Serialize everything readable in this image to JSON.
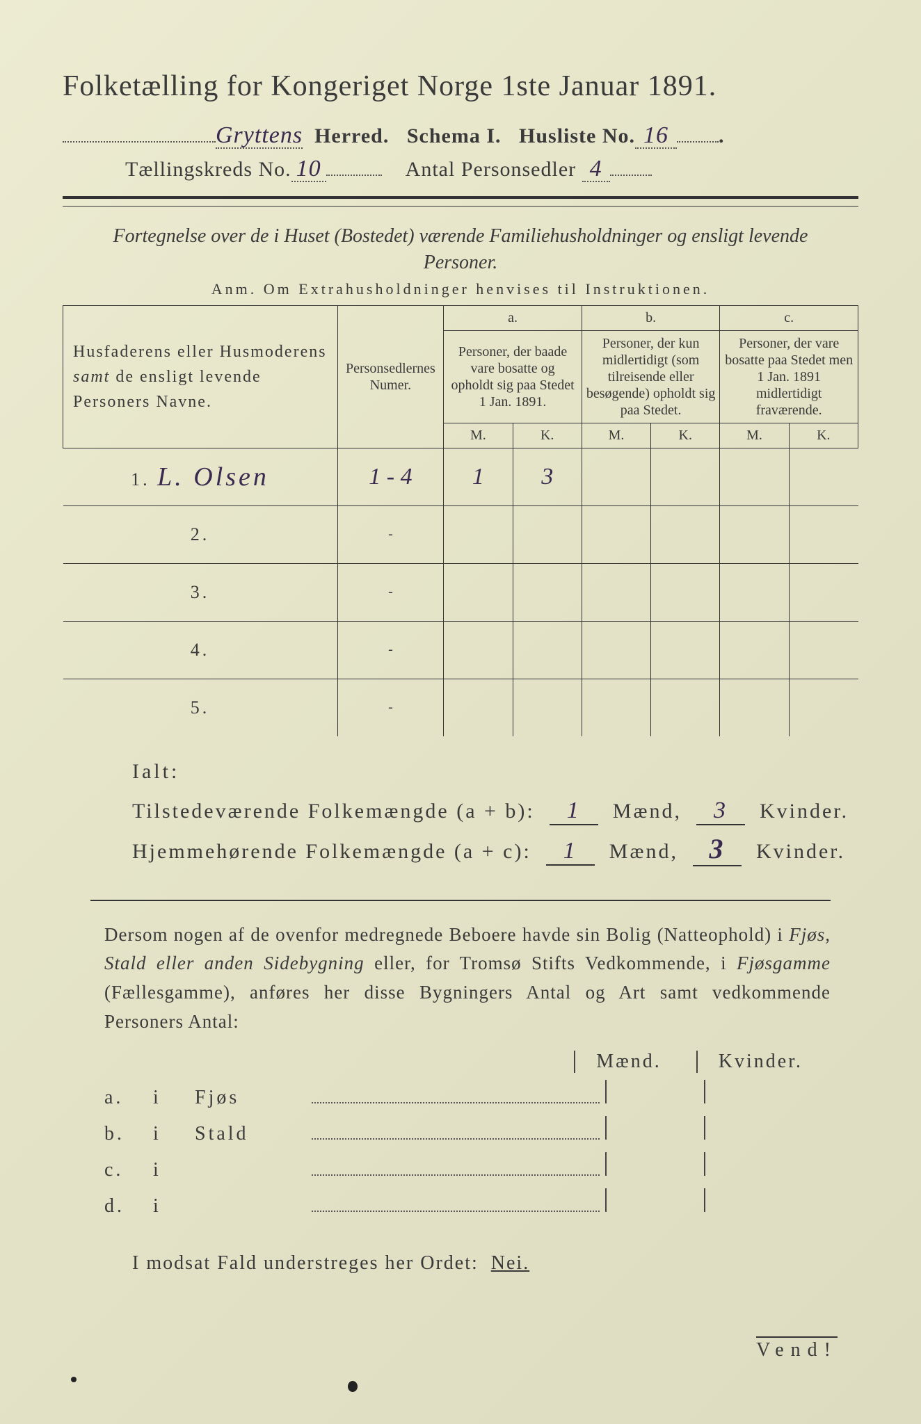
{
  "paper": {
    "background_color": "#e8e7cd",
    "text_color": "#3a3a3a",
    "ink_color": "#3a2a50"
  },
  "header": {
    "title": "Folketælling for Kongeriget Norge 1ste Januar 1891.",
    "line2_prefix_dotted_width": 220,
    "herred_value": "Gryttens",
    "herred_label": "Herred.",
    "schema_label": "Schema I.",
    "husliste_label": "Husliste No.",
    "husliste_value": "16",
    "kreds_label": "Tællingskreds No.",
    "kreds_value": "10",
    "sedler_label": "Antal Personsedler",
    "sedler_value": "4"
  },
  "intro": {
    "italic_line": "Fortegnelse over de i Huset (Bostedet) værende Familiehusholdninger og ensligt levende Personer.",
    "anm_line": "Anm.  Om Extrahusholdninger henvises til Instruktionen."
  },
  "table": {
    "columns": {
      "name_header": "Husfaderens eller Husmoderens samt de ensligt levende Personers Navne.",
      "numer_header": "Personsedlernes Numer.",
      "group_a_label": "a.",
      "group_a_text": "Personer, der baade vare bosatte og opholdt sig paa Stedet 1 Jan. 1891.",
      "group_b_label": "b.",
      "group_b_text": "Personer, der kun midlertidigt (som tilreisende eller besøgende) opholdt sig paa Stedet.",
      "group_c_label": "c.",
      "group_c_text": "Personer, der vare bosatte paa Stedet men 1 Jan. 1891 midlertidigt fraværende.",
      "mk_M": "M.",
      "mk_K": "K."
    },
    "rows": [
      {
        "n": "1.",
        "name": "L. Olsen",
        "numer": "1 - 4",
        "aM": "1",
        "aK": "3",
        "bM": "",
        "bK": "",
        "cM": "",
        "cK": ""
      },
      {
        "n": "2.",
        "name": "",
        "numer": "-",
        "aM": "",
        "aK": "",
        "bM": "",
        "bK": "",
        "cM": "",
        "cK": ""
      },
      {
        "n": "3.",
        "name": "",
        "numer": "-",
        "aM": "",
        "aK": "",
        "bM": "",
        "bK": "",
        "cM": "",
        "cK": ""
      },
      {
        "n": "4.",
        "name": "",
        "numer": "-",
        "aM": "",
        "aK": "",
        "bM": "",
        "bK": "",
        "cM": "",
        "cK": ""
      },
      {
        "n": "5.",
        "name": "",
        "numer": "-",
        "aM": "",
        "aK": "",
        "bM": "",
        "bK": "",
        "cM": "",
        "cK": ""
      }
    ]
  },
  "totals": {
    "ialt_label": "Ialt:",
    "present_label": "Tilstedeværende Folkemængde (a + b):",
    "resident_label": "Hjemmehørende Folkemængde (a + c):",
    "maend_label": "Mænd,",
    "kvinder_label": "Kvinder.",
    "present_m": "1",
    "present_k": "3",
    "resident_m": "1",
    "resident_k": "3"
  },
  "paragraph": {
    "text": "Dersom nogen af de ovenfor medregnede Beboere havde sin Bolig (Natteophold) i Fjøs, Stald eller anden Sidebygning eller, for Tromsø Stifts Vedkommende, i Fjøsgamme (Fællesgamme), anføres her disse Bygningers Antal og Art samt vedkommende Personers Antal:"
  },
  "dwellings": {
    "maend_label": "Mænd.",
    "kvinder_label": "Kvinder.",
    "rows": [
      {
        "letter": "a.",
        "i": "i",
        "type": "Fjøs"
      },
      {
        "letter": "b.",
        "i": "i",
        "type": "Stald"
      },
      {
        "letter": "c.",
        "i": "i",
        "type": ""
      },
      {
        "letter": "d.",
        "i": "i",
        "type": ""
      }
    ]
  },
  "footer": {
    "nei_line_prefix": "I modsat Fald understreges her Ordet:",
    "nei_word": "Nei.",
    "vend": "Vend!"
  }
}
